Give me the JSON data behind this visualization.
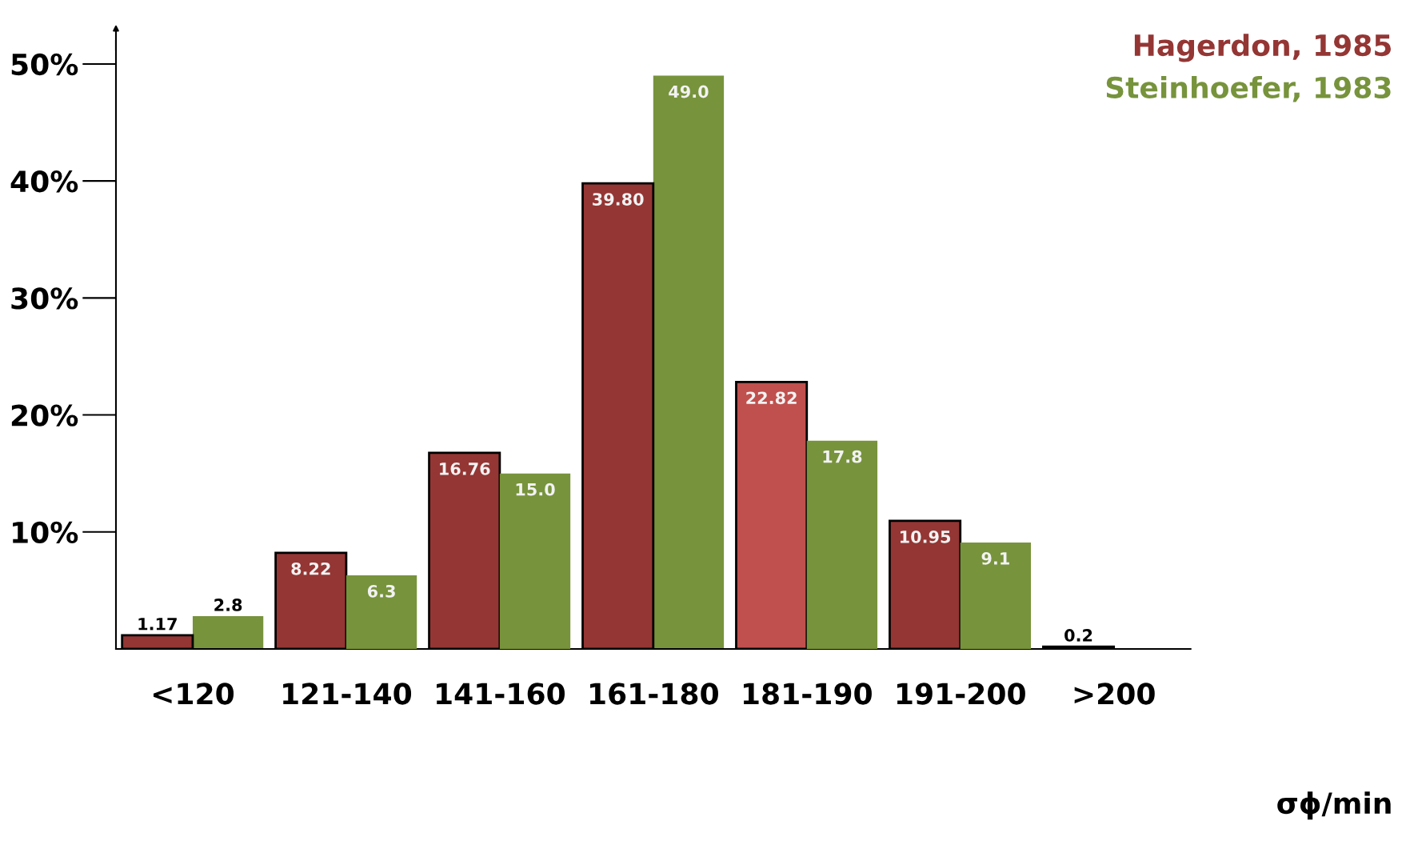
{
  "chart_data": {
    "type": "bar",
    "xlabel": "σϕ/min",
    "categories": [
      "<120",
      "121-140",
      "141-160",
      "161-180",
      "181-190",
      "191-200",
      ">200"
    ],
    "series": [
      {
        "name": "Hagerdon, 1985",
        "color": "#943634",
        "colors": [
          "#943634",
          "#943634",
          "#943634",
          "#943634",
          "#c0504d",
          "#943634",
          "#943634"
        ],
        "values": [
          1.17,
          8.22,
          16.76,
          39.8,
          22.82,
          10.95,
          0.2
        ],
        "value_labels": [
          "1.17",
          "8.22",
          "16.76",
          "39.80",
          "22.82",
          "10.95",
          "0.2"
        ]
      },
      {
        "name": "Steinhoefer, 1983",
        "color": "#77933c",
        "values": [
          2.8,
          6.3,
          15.0,
          49.0,
          17.8,
          9.1,
          null
        ],
        "value_labels": [
          "2.8",
          "6.3",
          "15.0",
          "49.0",
          "17.8",
          "9.1",
          null
        ]
      }
    ],
    "ylim": [
      0,
      52
    ],
    "yticks": [
      {
        "value": 10,
        "label": "10%"
      },
      {
        "value": 20,
        "label": "20%"
      },
      {
        "value": 30,
        "label": "30%"
      },
      {
        "value": 40,
        "label": "40%"
      },
      {
        "value": 50,
        "label": "50%"
      }
    ],
    "grid": false,
    "legend": "top right"
  }
}
